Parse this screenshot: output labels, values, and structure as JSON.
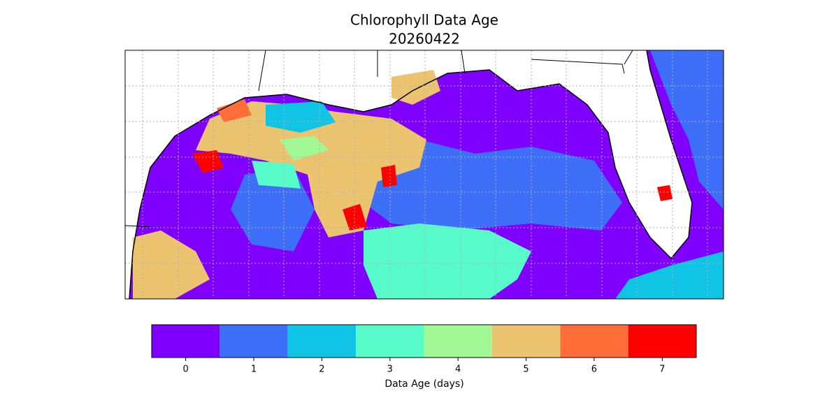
{
  "title": [
    "Chlorophyll Data Age",
    "20260422"
  ],
  "colorbar": {
    "ticks": [
      0,
      1,
      2,
      3,
      4,
      5,
      6,
      7
    ],
    "colors": [
      "#8000ff",
      "#3e6ff8",
      "#10c4e5",
      "#58fbca",
      "#a2f894",
      "#ecc36e",
      "#ff6d38",
      "#ff0000"
    ],
    "label": "Data Age (days)"
  }
}
